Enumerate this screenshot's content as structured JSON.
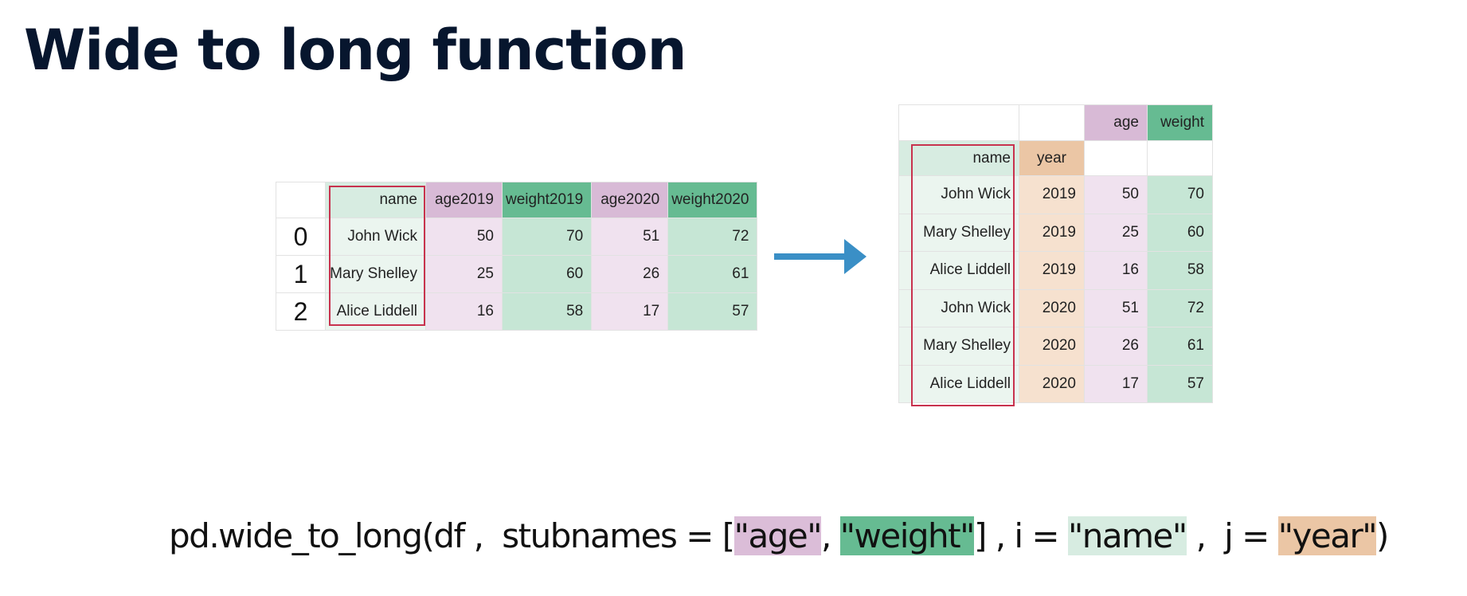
{
  "title": "Wide to long function",
  "wide_table": {
    "headers": [
      "",
      "name",
      "age2019",
      "weight2019",
      "age2020",
      "weight2020"
    ],
    "rows": [
      {
        "index": "0",
        "name": "John Wick",
        "age2019": "50",
        "weight2019": "70",
        "age2020": "51",
        "weight2020": "72"
      },
      {
        "index": "1",
        "name": "Mary Shelley",
        "age2019": "25",
        "weight2019": "60",
        "age2020": "26",
        "weight2020": "61"
      },
      {
        "index": "2",
        "name": "Alice Liddell",
        "age2019": "16",
        "weight2019": "58",
        "age2020": "17",
        "weight2020": "57"
      }
    ]
  },
  "long_table": {
    "top_headers": {
      "age": "age",
      "weight": "weight"
    },
    "index_headers": {
      "name": "name",
      "year": "year"
    },
    "rows": [
      {
        "name": "John Wick",
        "year": "2019",
        "age": "50",
        "weight": "70"
      },
      {
        "name": "Mary Shelley",
        "year": "2019",
        "age": "25",
        "weight": "60"
      },
      {
        "name": "Alice Liddell",
        "year": "2019",
        "age": "16",
        "weight": "58"
      },
      {
        "name": "John Wick",
        "year": "2020",
        "age": "51",
        "weight": "72"
      },
      {
        "name": "Mary Shelley",
        "year": "2020",
        "age": "26",
        "weight": "61"
      },
      {
        "name": "Alice Liddell",
        "year": "2020",
        "age": "17",
        "weight": "57"
      }
    ]
  },
  "formula": {
    "prefix": "pd.wide_to_long(df ,  stubnames = [",
    "age": "\"age\"",
    "comma1": ", ",
    "weight": "\"weight\"",
    "middle": "] , i = ",
    "name": "\"name\"",
    "comma2": " ,  j = ",
    "year": "\"year\"",
    "suffix": ")"
  },
  "colors": {
    "age": "#d8bad6",
    "weight": "#66bb92",
    "name": "#d7ece1",
    "year": "#ebc6a5",
    "highlight_box": "#c8324e",
    "arrow": "#3a8fc6"
  },
  "icons": {
    "arrow": "arrow-right-icon"
  }
}
